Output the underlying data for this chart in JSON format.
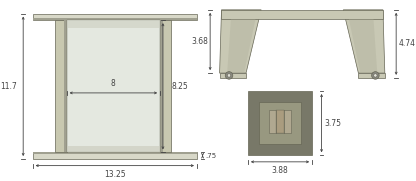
{
  "bg_color": "#ffffff",
  "line_color": "#666655",
  "fill_bar": "#c8c8b0",
  "fill_bar_dark": "#a0a090",
  "fill_bar_top": "#d8d8c8",
  "fill_glass": "#e4e8e0",
  "fill_glass_shade": "#cccec0",
  "fill_arch": "#c8c8b4",
  "fill_arch_dark": "#b0b09c",
  "fill_bolt_outer": "#888880",
  "fill_bolt_inner": "#e0e0d8",
  "fill_sq_outer": "#787868",
  "fill_sq_mid": "#989880",
  "fill_sq_inner": "#b0a890",
  "fill_sq_core": "#a89878",
  "dim_color": "#444444",
  "font_size": 5.5,
  "labels": {
    "left_height": "11.7",
    "inner_height": "8.25",
    "inner_width": "8",
    "bottom_width": "13.25",
    "bottom_offset": ".75",
    "handle_left": "3.68",
    "handle_right": "4.74",
    "sq_width": "3.88",
    "sq_height": "3.75"
  }
}
